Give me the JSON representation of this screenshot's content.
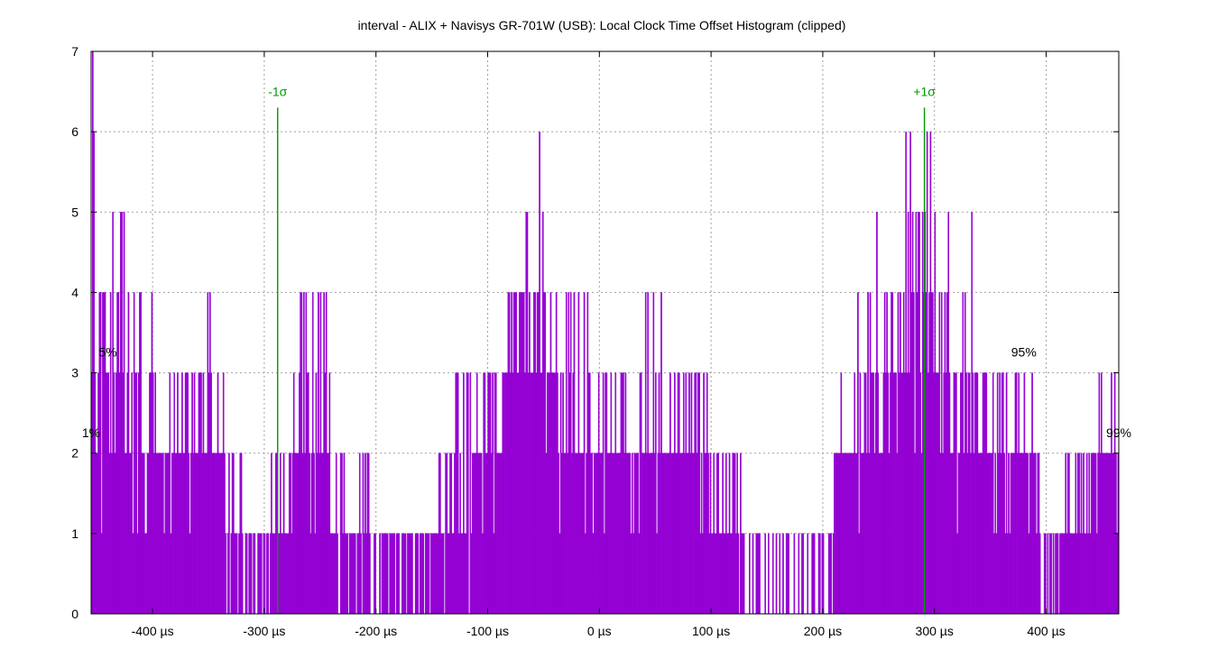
{
  "chart_data": {
    "type": "bar",
    "title": "interval - ALIX + Navisys GR-701W (USB): Local Clock Time Offset Histogram (clipped)",
    "x_unit": "µs",
    "xlim": [
      -455,
      465
    ],
    "ylim": [
      0,
      7
    ],
    "grid": true,
    "bar_color": "#9400d3",
    "marker_color": "#009900",
    "x_ticks": [
      {
        "value": -400,
        "label": "-400 µs"
      },
      {
        "value": -300,
        "label": "-300 µs"
      },
      {
        "value": -200,
        "label": "-200 µs"
      },
      {
        "value": -100,
        "label": "-100 µs"
      },
      {
        "value": 0,
        "label": "0 µs"
      },
      {
        "value": 100,
        "label": "100 µs"
      },
      {
        "value": 200,
        "label": "200 µs"
      },
      {
        "value": 300,
        "label": "300 µs"
      },
      {
        "value": 400,
        "label": "400 µs"
      }
    ],
    "y_ticks": [
      {
        "value": 0,
        "label": "0"
      },
      {
        "value": 1,
        "label": "1"
      },
      {
        "value": 2,
        "label": "2"
      },
      {
        "value": 3,
        "label": "3"
      },
      {
        "value": 4,
        "label": "4"
      },
      {
        "value": 5,
        "label": "5"
      },
      {
        "value": 6,
        "label": "6"
      },
      {
        "value": 7,
        "label": "7"
      }
    ],
    "sigma_markers": [
      {
        "label": "-1σ",
        "x": -288,
        "height": 6.3
      },
      {
        "label": "+1σ",
        "x": 291,
        "height": 6.3
      }
    ],
    "percentile_labels": [
      {
        "label": "1%",
        "x": -455,
        "y": 2.2
      },
      {
        "label": "5%",
        "x": -440,
        "y": 3.2
      },
      {
        "label": "95%",
        "x": 380,
        "y": 3.2
      },
      {
        "label": "99%",
        "x": 465,
        "y": 2.2
      }
    ],
    "bin_width_us": 1,
    "histogram_segments": [
      {
        "from": -455,
        "to": -440,
        "base": 2,
        "p_up": 0.6,
        "max": 5
      },
      {
        "from": -440,
        "to": -425,
        "base": 3,
        "p_up": 0.5,
        "max": 5
      },
      {
        "from": -425,
        "to": -400,
        "base": 2,
        "p_up": 0.4,
        "max": 4
      },
      {
        "from": -400,
        "to": -355,
        "base": 2,
        "p_up": 0.25,
        "max": 3
      },
      {
        "from": -355,
        "to": -335,
        "base": 2,
        "p_up": 0.4,
        "max": 4
      },
      {
        "from": -335,
        "to": -320,
        "base": 1,
        "p_up": 0.4,
        "max": 2
      },
      {
        "from": -320,
        "to": -295,
        "base": 1,
        "p_down": 0.3
      },
      {
        "from": -295,
        "to": -275,
        "base": 1,
        "p_up": 0.4,
        "max": 2
      },
      {
        "from": -275,
        "to": -240,
        "base": 2,
        "p_up": 0.3,
        "max": 4
      },
      {
        "from": -240,
        "to": -200,
        "base": 1,
        "p_up": 0.3,
        "max": 2
      },
      {
        "from": -200,
        "to": -150,
        "base": 1,
        "p_down": 0.3
      },
      {
        "from": -150,
        "to": -130,
        "base": 1,
        "p_up": 0.35,
        "max": 2
      },
      {
        "from": -130,
        "to": -110,
        "base": 1,
        "p_up": 0.6,
        "max": 3
      },
      {
        "from": -110,
        "to": -85,
        "base": 2,
        "p_up": 0.4,
        "max": 3
      },
      {
        "from": -85,
        "to": -65,
        "base": 3,
        "p_up": 0.35,
        "max": 4
      },
      {
        "from": -65,
        "to": -40,
        "base": 3,
        "p_up": 0.5,
        "max": 5
      },
      {
        "from": -40,
        "to": -10,
        "base": 2,
        "p_up": 0.4,
        "max": 4
      },
      {
        "from": -10,
        "to": 30,
        "base": 2,
        "p_up": 0.25,
        "max": 3
      },
      {
        "from": 30,
        "to": 65,
        "base": 2,
        "p_up": 0.35,
        "max": 4
      },
      {
        "from": 65,
        "to": 100,
        "base": 2,
        "p_up": 0.25,
        "max": 3
      },
      {
        "from": 100,
        "to": 130,
        "base": 1,
        "p_up": 0.35,
        "max": 2
      },
      {
        "from": 130,
        "to": 150,
        "base": 1,
        "p_down": 0.4
      },
      {
        "from": 150,
        "to": 210,
        "base": 1,
        "p_down": 0.55
      },
      {
        "from": 210,
        "to": 230,
        "base": 2,
        "p_up": 0.35,
        "max": 3
      },
      {
        "from": 230,
        "to": 260,
        "base": 2,
        "p_up": 0.5,
        "max": 4
      },
      {
        "from": 260,
        "to": 305,
        "base": 3,
        "p_up": 0.6,
        "max": 6
      },
      {
        "from": 305,
        "to": 340,
        "base": 2,
        "p_up": 0.6,
        "max": 4
      },
      {
        "from": 340,
        "to": 390,
        "base": 2,
        "p_up": 0.35,
        "max": 3
      },
      {
        "from": 390,
        "to": 395,
        "base": 1,
        "p_up": 0.3,
        "max": 2
      },
      {
        "from": 395,
        "to": 415,
        "base": 1,
        "p_down": 0.55
      },
      {
        "from": 415,
        "to": 440,
        "base": 1,
        "p_up": 0.4,
        "max": 2
      },
      {
        "from": 440,
        "to": 465,
        "base": 2,
        "p_up": 0.2,
        "max": 3
      }
    ],
    "peak_bins": [
      {
        "x": -454,
        "count": 7
      },
      {
        "x": -453,
        "count": 6
      },
      {
        "x": -428,
        "count": 5
      },
      {
        "x": -54,
        "count": 6
      },
      {
        "x": -66,
        "count": 5
      },
      {
        "x": 248,
        "count": 5
      },
      {
        "x": 274,
        "count": 6
      },
      {
        "x": 278,
        "count": 6
      },
      {
        "x": 293,
        "count": 6
      },
      {
        "x": 296,
        "count": 6
      },
      {
        "x": 285,
        "count": 5
      },
      {
        "x": 300,
        "count": 5
      },
      {
        "x": 312,
        "count": 5
      },
      {
        "x": 333,
        "count": 5
      },
      {
        "x": 447,
        "count": 3
      },
      {
        "x": 449,
        "count": 3
      }
    ]
  }
}
